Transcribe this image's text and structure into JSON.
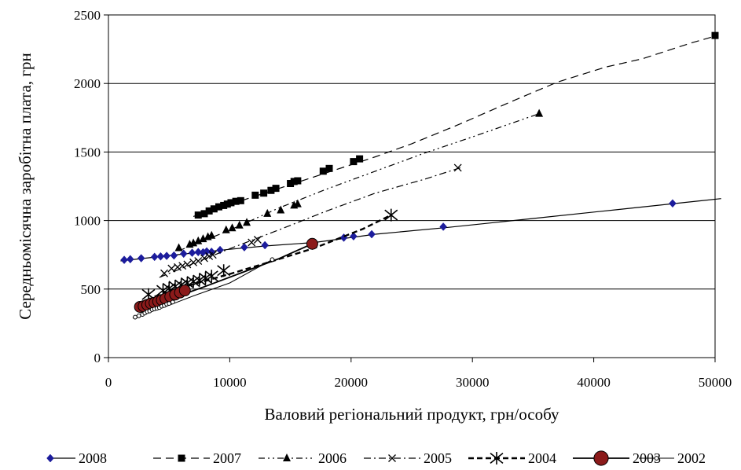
{
  "chart_data": {
    "type": "scatter",
    "xlabel": "Валовий регіональний продукт, грн/особу",
    "ylabel": "Середньомісячна заробітна плата, грн",
    "xlim": [
      0,
      50000
    ],
    "ylim": [
      0,
      2500
    ],
    "x_ticks": [
      0,
      10000,
      20000,
      30000,
      40000,
      50000
    ],
    "y_ticks": [
      0,
      500,
      1000,
      1500,
      2000,
      2500
    ],
    "x_tick_labels": [
      "0",
      "10000",
      "20000",
      "30000",
      "40000",
      "50000"
    ],
    "y_tick_labels": [
      "0",
      "500",
      "1000",
      "1500",
      "2000",
      "2500"
    ],
    "grid": "horizontal",
    "legend_position": "bottom",
    "series": [
      {
        "name": "2008",
        "marker": "diamond",
        "color": "#1c1c9c",
        "dash": "",
        "trend": [
          [
            1000,
            705
          ],
          [
            5000,
            745
          ],
          [
            10000,
            790
          ],
          [
            13000,
            815
          ],
          [
            17000,
            840
          ],
          [
            22000,
            900
          ],
          [
            28000,
            950
          ],
          [
            35000,
            1015
          ],
          [
            42000,
            1080
          ],
          [
            50500,
            1160
          ]
        ],
        "points": [
          [
            1300,
            713
          ],
          [
            1800,
            718
          ],
          [
            2700,
            725
          ],
          [
            3800,
            735
          ],
          [
            4300,
            738
          ],
          [
            4800,
            742
          ],
          [
            5400,
            745
          ],
          [
            6200,
            758
          ],
          [
            6900,
            765
          ],
          [
            7400,
            770
          ],
          [
            7800,
            768
          ],
          [
            8100,
            775
          ],
          [
            8500,
            772
          ],
          [
            9200,
            785
          ],
          [
            11200,
            805
          ],
          [
            12900,
            820
          ],
          [
            19400,
            875
          ],
          [
            20200,
            885
          ],
          [
            21700,
            900
          ],
          [
            27600,
            955
          ],
          [
            46500,
            1125
          ]
        ]
      },
      {
        "name": "2007",
        "marker": "square",
        "color": "#000000",
        "dash": "10 6",
        "trend": [
          [
            7000,
            1030
          ],
          [
            12000,
            1175
          ],
          [
            17000,
            1320
          ],
          [
            22000,
            1465
          ],
          [
            25000,
            1560
          ],
          [
            29000,
            1705
          ],
          [
            33000,
            1860
          ],
          [
            37000,
            2010
          ],
          [
            41000,
            2120
          ],
          [
            44000,
            2180
          ],
          [
            48000,
            2295
          ],
          [
            50000,
            2345
          ]
        ],
        "points": [
          [
            7400,
            1040
          ],
          [
            7900,
            1050
          ],
          [
            8300,
            1070
          ],
          [
            8700,
            1085
          ],
          [
            9100,
            1100
          ],
          [
            9500,
            1110
          ],
          [
            9800,
            1120
          ],
          [
            10100,
            1130
          ],
          [
            10500,
            1140
          ],
          [
            10900,
            1145
          ],
          [
            12100,
            1185
          ],
          [
            12800,
            1200
          ],
          [
            13400,
            1220
          ],
          [
            13800,
            1235
          ],
          [
            15000,
            1270
          ],
          [
            15300,
            1285
          ],
          [
            15600,
            1290
          ],
          [
            17700,
            1360
          ],
          [
            18200,
            1380
          ],
          [
            20200,
            1430
          ],
          [
            20700,
            1450
          ],
          [
            50000,
            2350
          ]
        ]
      },
      {
        "name": "2006",
        "marker": "triangle",
        "color": "#000000",
        "dash": "8 4 2 4 2 4",
        "trend": [
          [
            5800,
            780
          ],
          [
            10000,
            930
          ],
          [
            14000,
            1090
          ],
          [
            18000,
            1230
          ],
          [
            22000,
            1360
          ],
          [
            26000,
            1490
          ],
          [
            30000,
            1610
          ],
          [
            35500,
            1780
          ]
        ],
        "points": [
          [
            5800,
            800
          ],
          [
            6700,
            825
          ],
          [
            7000,
            835
          ],
          [
            7400,
            850
          ],
          [
            7800,
            865
          ],
          [
            8200,
            880
          ],
          [
            8500,
            890
          ],
          [
            9700,
            930
          ],
          [
            10200,
            945
          ],
          [
            10800,
            965
          ],
          [
            11400,
            985
          ],
          [
            13100,
            1050
          ],
          [
            14200,
            1075
          ],
          [
            15300,
            1110
          ],
          [
            15600,
            1120
          ],
          [
            35500,
            1780
          ]
        ]
      },
      {
        "name": "2005",
        "marker": "x",
        "color": "#000000",
        "dash": "9 4 2 4",
        "trend": [
          [
            4200,
            585
          ],
          [
            10000,
            795
          ],
          [
            14000,
            930
          ],
          [
            18000,
            1070
          ],
          [
            22000,
            1200
          ],
          [
            26000,
            1300
          ],
          [
            29000,
            1385
          ]
        ],
        "points": [
          [
            4600,
            615
          ],
          [
            5200,
            650
          ],
          [
            5700,
            660
          ],
          [
            6100,
            670
          ],
          [
            6500,
            680
          ],
          [
            7000,
            695
          ],
          [
            7400,
            705
          ],
          [
            7900,
            725
          ],
          [
            8300,
            740
          ],
          [
            8600,
            750
          ],
          [
            11800,
            840
          ],
          [
            12300,
            860
          ],
          [
            28800,
            1385
          ]
        ]
      },
      {
        "name": "2004",
        "marker": "asterisk",
        "color": "#000000",
        "dash": "7 4",
        "trend": [
          [
            3800,
            445
          ],
          [
            6000,
            510
          ],
          [
            8000,
            560
          ],
          [
            10000,
            610
          ],
          [
            13000,
            690
          ],
          [
            15000,
            745
          ],
          [
            17000,
            800
          ],
          [
            19000,
            870
          ],
          [
            21000,
            940
          ],
          [
            23300,
            1040
          ]
        ],
        "points": [
          [
            3300,
            460
          ],
          [
            4500,
            490
          ],
          [
            5000,
            505
          ],
          [
            5500,
            520
          ],
          [
            6000,
            530
          ],
          [
            6500,
            545
          ],
          [
            7000,
            555
          ],
          [
            7500,
            565
          ],
          [
            8000,
            580
          ],
          [
            8500,
            595
          ],
          [
            9500,
            635
          ],
          [
            23300,
            1040
          ]
        ]
      },
      {
        "name": "2003",
        "marker": "circle",
        "color": "#8b1a1a",
        "dash": "",
        "trend": [
          [
            2500,
            360
          ],
          [
            5000,
            425
          ],
          [
            8000,
            520
          ],
          [
            11000,
            620
          ],
          [
            14000,
            720
          ],
          [
            16800,
            830
          ]
        ],
        "points": [
          [
            2600,
            370
          ],
          [
            2900,
            375
          ],
          [
            3200,
            385
          ],
          [
            3500,
            395
          ],
          [
            3800,
            400
          ],
          [
            4100,
            410
          ],
          [
            4400,
            420
          ],
          [
            4700,
            430
          ],
          [
            5100,
            445
          ],
          [
            5500,
            460
          ],
          [
            5900,
            475
          ],
          [
            6300,
            490
          ],
          [
            16800,
            830
          ]
        ]
      },
      {
        "name": "2002",
        "marker": "ring",
        "color": "#000000",
        "dash": "",
        "trend": [
          [
            2000,
            290
          ],
          [
            4500,
            365
          ],
          [
            7000,
            450
          ],
          [
            10000,
            545
          ],
          [
            13500,
            715
          ]
        ],
        "points": [
          [
            2200,
            295
          ],
          [
            2500,
            305
          ],
          [
            2800,
            315
          ],
          [
            3000,
            325
          ],
          [
            3200,
            335
          ],
          [
            3400,
            340
          ],
          [
            3600,
            350
          ],
          [
            3800,
            355
          ],
          [
            4000,
            360
          ],
          [
            4200,
            365
          ],
          [
            4400,
            375
          ],
          [
            4600,
            380
          ],
          [
            4800,
            390
          ],
          [
            5000,
            395
          ],
          [
            5300,
            405
          ],
          [
            13500,
            715
          ]
        ]
      }
    ]
  }
}
